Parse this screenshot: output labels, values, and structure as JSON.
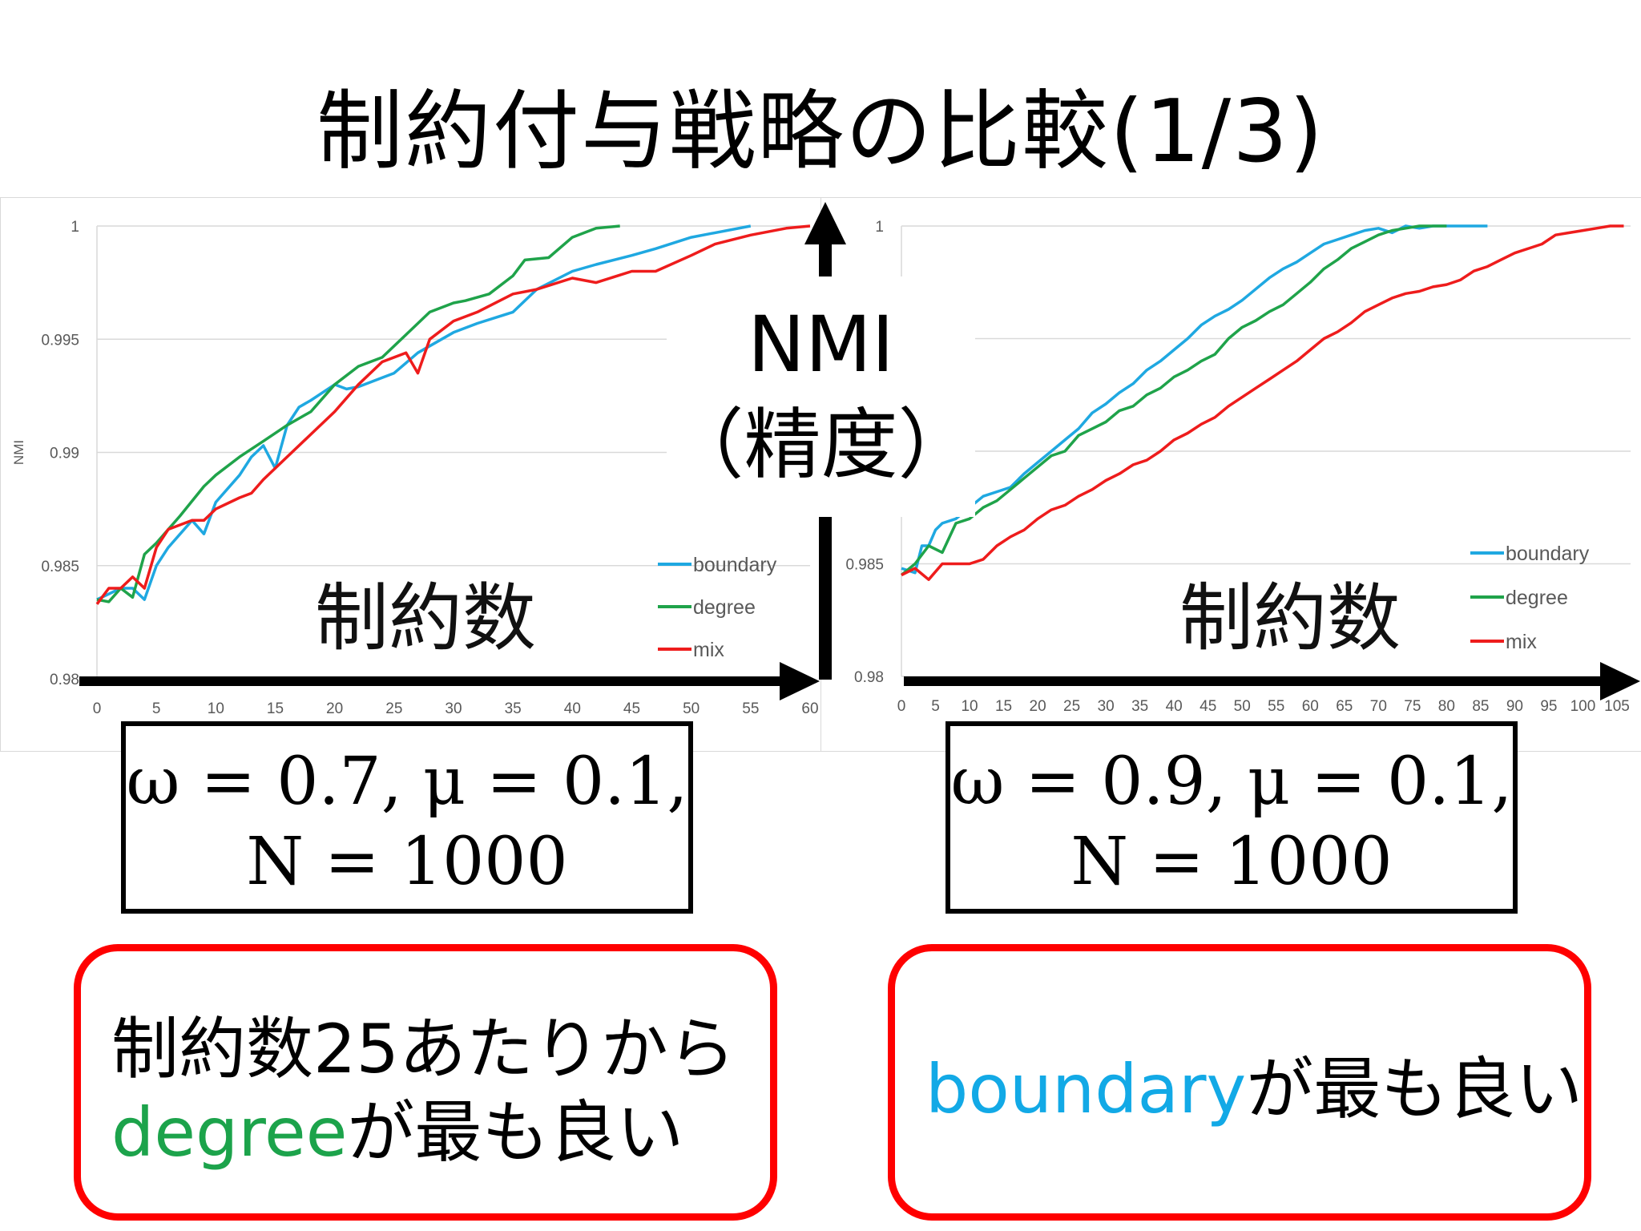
{
  "title": "制約付与戦略の比較(1/3)",
  "overlay": {
    "nmi_label": "NMI",
    "nmi_sub": "（精度）",
    "constraint_label": "制約数"
  },
  "colors": {
    "boundary": "#1fa8e1",
    "degree": "#1fa34a",
    "mix": "#ee1c1c",
    "accent_red": "#ff0000"
  },
  "params": [
    {
      "line1": "ω = 0.7, μ = 0.1,",
      "line2": "N = 1000"
    },
    {
      "line1": "ω = 0.9, μ = 0.1,",
      "line2": "N = 1000"
    }
  ],
  "conclusions": [
    {
      "line1": "制約数25あたりから",
      "highlight": "degree",
      "rest": "が最も良い"
    },
    {
      "highlight": "boundary",
      "rest": "が最も良い"
    }
  ],
  "chart_data": [
    {
      "type": "line",
      "ylabel": "NMI",
      "xlabel": "",
      "ylim": [
        0.98,
        1
      ],
      "yticks": [
        "0.98",
        "0.985",
        "0.99",
        "0.995",
        "1"
      ],
      "xlim": [
        0,
        60
      ],
      "xticks": [
        "0",
        "5",
        "10",
        "15",
        "20",
        "25",
        "30",
        "35",
        "40",
        "45",
        "50",
        "55",
        "60"
      ],
      "legend_position": "right",
      "grid": true,
      "series": [
        {
          "name": "boundary",
          "x": [
            0,
            2,
            3,
            4,
            5,
            6,
            8,
            9,
            10,
            12,
            13,
            14,
            15,
            16,
            17,
            18,
            20,
            21,
            22,
            24,
            25,
            27,
            30,
            32,
            35,
            37,
            40,
            42,
            45,
            47,
            50,
            55
          ],
          "values": [
            0.9835,
            0.984,
            0.984,
            0.9835,
            0.985,
            0.9858,
            0.987,
            0.9864,
            0.9878,
            0.989,
            0.9898,
            0.9903,
            0.9893,
            0.9912,
            0.992,
            0.9923,
            0.993,
            0.9928,
            0.9929,
            0.9933,
            0.9935,
            0.9944,
            0.9953,
            0.9957,
            0.9962,
            0.9972,
            0.998,
            0.9983,
            0.9987,
            0.999,
            0.9995,
            1.0
          ]
        },
        {
          "name": "degree",
          "x": [
            0,
            1,
            2,
            3,
            4,
            5,
            7,
            9,
            10,
            12,
            14,
            16,
            18,
            20,
            22,
            24,
            26,
            28,
            30,
            31,
            33,
            35,
            36,
            38,
            40,
            42,
            44
          ],
          "values": [
            0.9835,
            0.9834,
            0.984,
            0.9836,
            0.9855,
            0.986,
            0.9872,
            0.9885,
            0.989,
            0.9898,
            0.9905,
            0.9912,
            0.9918,
            0.993,
            0.9938,
            0.9942,
            0.9952,
            0.9962,
            0.9966,
            0.9967,
            0.997,
            0.9978,
            0.9985,
            0.9986,
            0.9995,
            0.9999,
            1.0
          ]
        },
        {
          "name": "mix",
          "x": [
            0,
            1,
            2,
            3,
            4,
            5,
            6,
            8,
            9,
            10,
            12,
            13,
            14,
            16,
            18,
            20,
            22,
            24,
            26,
            27,
            28,
            30,
            32,
            35,
            37,
            40,
            42,
            45,
            47,
            50,
            52,
            55,
            58,
            60
          ],
          "values": [
            0.9833,
            0.984,
            0.984,
            0.9845,
            0.984,
            0.9858,
            0.9866,
            0.987,
            0.987,
            0.9875,
            0.988,
            0.9882,
            0.9888,
            0.9898,
            0.9908,
            0.9918,
            0.993,
            0.994,
            0.9944,
            0.9935,
            0.995,
            0.9958,
            0.9962,
            0.997,
            0.9972,
            0.9977,
            0.9975,
            0.998,
            0.998,
            0.9987,
            0.9992,
            0.9996,
            0.9999,
            1.0
          ]
        }
      ]
    },
    {
      "type": "line",
      "ylabel": "",
      "xlabel": "",
      "ylim": [
        0.98,
        1
      ],
      "yticks": [
        "0.98",
        "0.985",
        "1"
      ],
      "xlim": [
        0,
        107
      ],
      "xticks": [
        "0",
        "5",
        "10",
        "15",
        "20",
        "25",
        "30",
        "35",
        "40",
        "45",
        "50",
        "55",
        "60",
        "65",
        "70",
        "75",
        "80",
        "85",
        "90",
        "95",
        "100",
        "105"
      ],
      "legend_position": "right",
      "grid": true,
      "series": [
        {
          "name": "boundary",
          "x": [
            0,
            2,
            3,
            4,
            5,
            6,
            8,
            10,
            12,
            14,
            16,
            18,
            20,
            22,
            24,
            26,
            28,
            30,
            32,
            34,
            36,
            38,
            40,
            42,
            44,
            46,
            48,
            50,
            52,
            54,
            56,
            58,
            60,
            62,
            64,
            66,
            68,
            70,
            72,
            74,
            76,
            78,
            80,
            82,
            84,
            86
          ],
          "values": [
            0.9848,
            0.9846,
            0.9858,
            0.9858,
            0.9865,
            0.9868,
            0.987,
            0.9875,
            0.988,
            0.9882,
            0.9884,
            0.989,
            0.9895,
            0.99,
            0.9905,
            0.991,
            0.9917,
            0.9921,
            0.9926,
            0.993,
            0.9936,
            0.994,
            0.9945,
            0.995,
            0.9956,
            0.996,
            0.9963,
            0.9967,
            0.9972,
            0.9977,
            0.9981,
            0.9984,
            0.9988,
            0.9992,
            0.9994,
            0.9996,
            0.9998,
            0.9999,
            0.9997,
            1.0,
            0.9999,
            1.0,
            1.0,
            1.0,
            1.0,
            1.0
          ]
        },
        {
          "name": "degree",
          "x": [
            0,
            2,
            4,
            6,
            8,
            10,
            12,
            14,
            16,
            18,
            20,
            22,
            24,
            26,
            28,
            30,
            32,
            34,
            36,
            38,
            40,
            42,
            44,
            46,
            48,
            50,
            52,
            54,
            56,
            58,
            60,
            62,
            64,
            66,
            68,
            70,
            72,
            74,
            76,
            78,
            80
          ],
          "values": [
            0.9845,
            0.985,
            0.9858,
            0.9855,
            0.9868,
            0.987,
            0.9875,
            0.9878,
            0.9883,
            0.9888,
            0.9893,
            0.9898,
            0.99,
            0.9907,
            0.991,
            0.9913,
            0.9918,
            0.992,
            0.9925,
            0.9928,
            0.9933,
            0.9936,
            0.994,
            0.9943,
            0.995,
            0.9955,
            0.9958,
            0.9962,
            0.9965,
            0.997,
            0.9975,
            0.9981,
            0.9985,
            0.999,
            0.9993,
            0.9996,
            0.9998,
            0.9999,
            1.0,
            1.0,
            1.0
          ]
        },
        {
          "name": "mix",
          "x": [
            0,
            2,
            4,
            6,
            8,
            10,
            12,
            14,
            16,
            18,
            20,
            22,
            24,
            26,
            28,
            30,
            32,
            34,
            36,
            38,
            40,
            42,
            44,
            46,
            48,
            50,
            52,
            54,
            56,
            58,
            60,
            62,
            64,
            66,
            68,
            70,
            72,
            74,
            76,
            78,
            80,
            82,
            84,
            86,
            88,
            90,
            92,
            94,
            96,
            98,
            100,
            102,
            104,
            106
          ],
          "values": [
            0.9845,
            0.9848,
            0.9843,
            0.985,
            0.985,
            0.985,
            0.9852,
            0.9858,
            0.9862,
            0.9865,
            0.987,
            0.9874,
            0.9876,
            0.988,
            0.9883,
            0.9887,
            0.989,
            0.9894,
            0.9896,
            0.99,
            0.9905,
            0.9908,
            0.9912,
            0.9915,
            0.992,
            0.9924,
            0.9928,
            0.9932,
            0.9936,
            0.994,
            0.9945,
            0.995,
            0.9953,
            0.9957,
            0.9962,
            0.9965,
            0.9968,
            0.997,
            0.9971,
            0.9973,
            0.9974,
            0.9976,
            0.998,
            0.9982,
            0.9985,
            0.9988,
            0.999,
            0.9992,
            0.9996,
            0.9997,
            0.9998,
            0.9999,
            1.0,
            1.0
          ]
        }
      ]
    }
  ]
}
